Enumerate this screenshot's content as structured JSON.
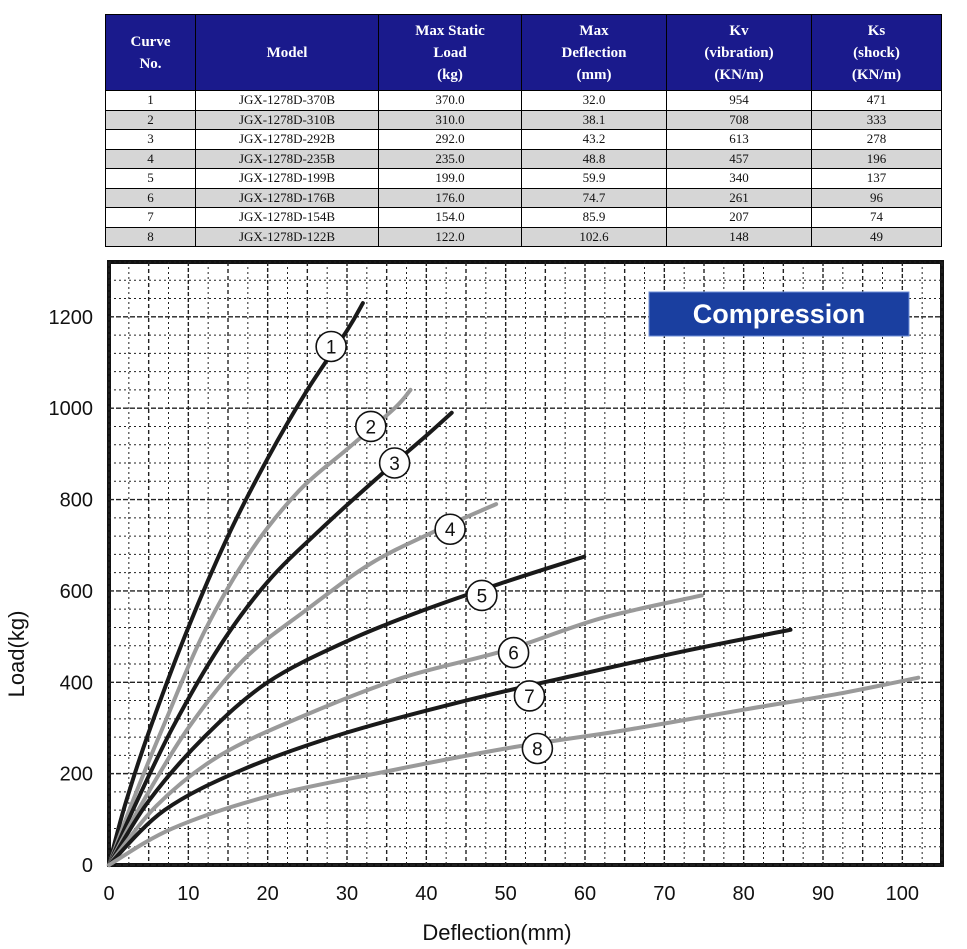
{
  "table": {
    "headers": [
      "Curve\nNo.",
      "Model",
      "Max Static\nLoad\n(kg)",
      "Max\nDeflection\n(mm)",
      "Kv\n(vibration)\n(KN/m)",
      "Ks\n(shock)\n(KN/m)"
    ],
    "rows": [
      [
        "1",
        "JGX-1278D-370B",
        "370.0",
        "32.0",
        "954",
        "471"
      ],
      [
        "2",
        "JGX-1278D-310B",
        "310.0",
        "38.1",
        "708",
        "333"
      ],
      [
        "3",
        "JGX-1278D-292B",
        "292.0",
        "43.2",
        "613",
        "278"
      ],
      [
        "4",
        "JGX-1278D-235B",
        "235.0",
        "48.8",
        "457",
        "196"
      ],
      [
        "5",
        "JGX-1278D-199B",
        "199.0",
        "59.9",
        "340",
        "137"
      ],
      [
        "6",
        "JGX-1278D-176B",
        "176.0",
        "74.7",
        "261",
        "96"
      ],
      [
        "7",
        "JGX-1278D-154B",
        "154.0",
        "85.9",
        "207",
        "74"
      ],
      [
        "8",
        "JGX-1278D-122B",
        "122.0",
        "102.6",
        "148",
        "49"
      ]
    ],
    "header_color": "#1a1a8c",
    "stripe_color": "#d6d6d6"
  },
  "chart_data": {
    "type": "line",
    "title": "",
    "badge": "Compression",
    "badge_color": "#1a3fa0",
    "xlabel": "Deflection(mm)",
    "ylabel": "Load(kg)",
    "xlim": [
      0,
      105
    ],
    "ylim": [
      0,
      1320
    ],
    "xticks": [
      0,
      10,
      20,
      30,
      40,
      50,
      60,
      70,
      80,
      90,
      100
    ],
    "yticks": [
      0,
      200,
      400,
      600,
      800,
      1000,
      1200
    ],
    "grid": true,
    "series": [
      {
        "label": "1",
        "color": "#1a1a1a",
        "x": [
          0,
          2,
          5,
          10,
          15,
          20,
          25,
          30,
          32
        ],
        "y": [
          0,
          130,
          290,
          520,
          720,
          890,
          1040,
          1170,
          1230
        ],
        "label_at": [
          28.0,
          1135
        ]
      },
      {
        "label": "2",
        "color": "#9a9a9a",
        "x": [
          0,
          3,
          7,
          12,
          18,
          24,
          30,
          36,
          38
        ],
        "y": [
          0,
          140,
          310,
          510,
          690,
          820,
          910,
          1000,
          1040
        ],
        "label_at": [
          33.0,
          960
        ]
      },
      {
        "label": "3",
        "color": "#1a1a1a",
        "x": [
          0,
          3,
          8,
          14,
          20,
          27,
          34,
          40,
          43.2
        ],
        "y": [
          0,
          120,
          300,
          480,
          620,
          740,
          850,
          940,
          990
        ],
        "label_at": [
          36.0,
          880
        ]
      },
      {
        "label": "4",
        "color": "#9a9a9a",
        "x": [
          0,
          4,
          10,
          17,
          25,
          33,
          41,
          48.8
        ],
        "y": [
          0,
          130,
          300,
          450,
          560,
          660,
          730,
          790
        ],
        "label_at": [
          43.0,
          735
        ]
      },
      {
        "label": "5",
        "color": "#1a1a1a",
        "x": [
          0,
          5,
          12,
          20,
          30,
          40,
          50,
          59.9
        ],
        "y": [
          0,
          140,
          280,
          400,
          490,
          560,
          620,
          675
        ],
        "label_at": [
          47.0,
          590
        ]
      },
      {
        "label": "6",
        "color": "#9a9a9a",
        "x": [
          0,
          6,
          14,
          25,
          37,
          50,
          62,
          74.7
        ],
        "y": [
          0,
          130,
          240,
          330,
          410,
          470,
          540,
          590
        ],
        "label_at": [
          51.0,
          465
        ]
      },
      {
        "label": "7",
        "color": "#1a1a1a",
        "x": [
          0,
          7,
          17,
          30,
          45,
          60,
          73,
          85.9
        ],
        "y": [
          0,
          120,
          210,
          290,
          360,
          420,
          470,
          515
        ],
        "label_at": [
          53.0,
          370
        ]
      },
      {
        "label": "8",
        "color": "#9a9a9a",
        "x": [
          0,
          8,
          20,
          35,
          50,
          65,
          80,
          92,
          102
        ],
        "y": [
          0,
          80,
          150,
          205,
          255,
          295,
          340,
          375,
          410
        ],
        "label_at": [
          54.0,
          255
        ]
      }
    ]
  }
}
